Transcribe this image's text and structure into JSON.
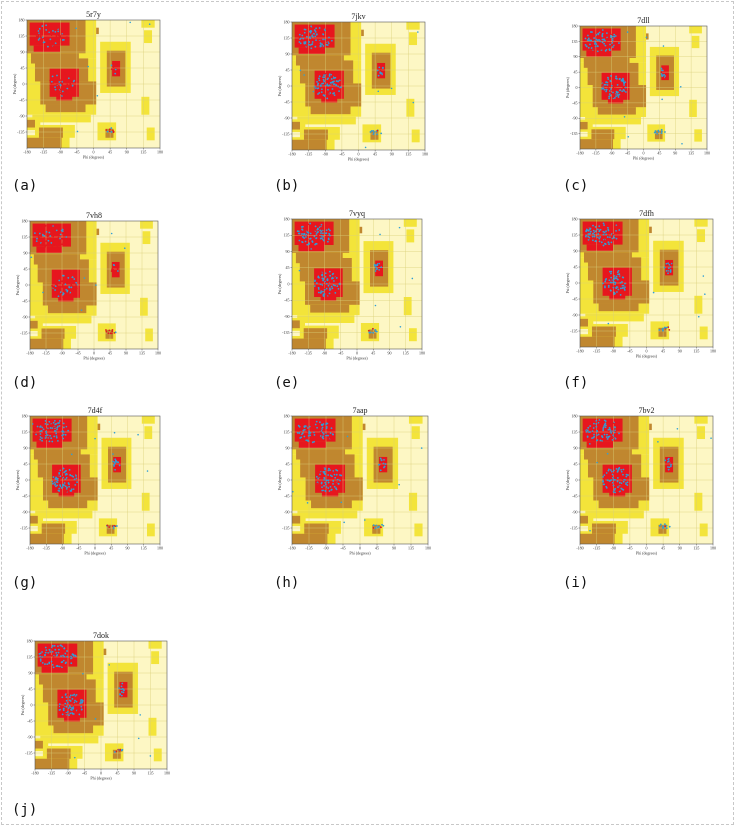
{
  "figure": {
    "colors": {
      "outer": "#fdf7c4",
      "allowed": "#f3e43a",
      "favored": "#c0872f",
      "core": "#e7161e",
      "residue_red": "#e21a1e",
      "residue_blue": "#2f9fd6",
      "grid": "#d9cf7a"
    }
  },
  "chart_data": [
    {
      "type": "scatter",
      "title": "5r7y",
      "caption": "(a)",
      "xlabel": "Phi (degrees)",
      "ylabel": "Psi (degrees)",
      "xlim": [
        -180,
        180
      ],
      "ylim": [
        -180,
        180
      ],
      "xticks": [
        "-180",
        "-135",
        "-90",
        "-45",
        "0",
        "45",
        "90",
        "135",
        "180"
      ],
      "yticks": [
        "180",
        "135",
        "90",
        "45",
        "0",
        "-45",
        "-90",
        "-135"
      ],
      "dominant_marker": "red"
    },
    {
      "type": "scatter",
      "title": "7jkv",
      "caption": "(b)",
      "xlabel": "Phi (degrees)",
      "ylabel": "Psi (degrees)",
      "xlim": [
        -180,
        180
      ],
      "ylim": [
        -180,
        180
      ],
      "xticks": [
        "-180",
        "-135",
        "-90",
        "-45",
        "0",
        "45",
        "90",
        "135",
        "180"
      ],
      "yticks": [
        "180",
        "135",
        "90",
        "45",
        "0",
        "-45",
        "-90",
        "-135"
      ],
      "dominant_marker": "blue"
    },
    {
      "type": "scatter",
      "title": "7dll",
      "caption": "(c)",
      "xlabel": "Phi (degrees)",
      "ylabel": "Psi (degrees)",
      "xlim": [
        -180,
        180
      ],
      "ylim": [
        -180,
        180
      ],
      "xticks": [
        "-180",
        "-135",
        "-90",
        "-45",
        "0",
        "45",
        "90",
        "135",
        "180"
      ],
      "yticks": [
        "180",
        "135",
        "90",
        "45",
        "0",
        "-45",
        "-90",
        "-135"
      ],
      "dominant_marker": "blue"
    },
    {
      "type": "scatter",
      "title": "7vh8",
      "caption": "(d)",
      "xlabel": "Phi (degrees)",
      "ylabel": "Psi (degrees)",
      "xlim": [
        -180,
        180
      ],
      "ylim": [
        -180,
        180
      ],
      "xticks": [
        "-180",
        "-135",
        "-90",
        "-45",
        "0",
        "45",
        "90",
        "135",
        "180"
      ],
      "yticks": [
        "180",
        "135",
        "90",
        "45",
        "0",
        "-45",
        "-90",
        "-135"
      ],
      "dominant_marker": "red"
    },
    {
      "type": "scatter",
      "title": "7vyq",
      "caption": "(e)",
      "xlabel": "Phi (degrees)",
      "ylabel": "Psi (degrees)",
      "xlim": [
        -180,
        180
      ],
      "ylim": [
        -180,
        180
      ],
      "xticks": [
        "-180",
        "-135",
        "-90",
        "-45",
        "0",
        "45",
        "90",
        "135",
        "180"
      ],
      "yticks": [
        "180",
        "135",
        "90",
        "45",
        "0",
        "-45",
        "-90",
        "-135"
      ],
      "dominant_marker": "blue"
    },
    {
      "type": "scatter",
      "title": "7dfh",
      "caption": "(f)",
      "xlabel": "Phi (degrees)",
      "ylabel": "Psi (degrees)",
      "xlim": [
        -180,
        180
      ],
      "ylim": [
        -180,
        180
      ],
      "xticks": [
        "-180",
        "-135",
        "-90",
        "-45",
        "0",
        "45",
        "90",
        "135",
        "180"
      ],
      "yticks": [
        "180",
        "135",
        "90",
        "45",
        "0",
        "-45",
        "-90",
        "-135"
      ],
      "dominant_marker": "blue"
    },
    {
      "type": "scatter",
      "title": "7d4f",
      "caption": "(g)",
      "xlabel": "Phi (degrees)",
      "ylabel": "Psi (degrees)",
      "xlim": [
        -180,
        180
      ],
      "ylim": [
        -180,
        180
      ],
      "xticks": [
        "-180",
        "-135",
        "-90",
        "-45",
        "0",
        "45",
        "90",
        "135",
        "180"
      ],
      "yticks": [
        "180",
        "135",
        "90",
        "45",
        "0",
        "-45",
        "-90",
        "-135"
      ],
      "dominant_marker": "blue"
    },
    {
      "type": "scatter",
      "title": "7aap",
      "caption": "(h)",
      "xlabel": "Phi (degrees)",
      "ylabel": "Psi (degrees)",
      "xlim": [
        -180,
        180
      ],
      "ylim": [
        -180,
        180
      ],
      "xticks": [
        "-180",
        "-135",
        "-90",
        "-45",
        "0",
        "45",
        "90",
        "135",
        "180"
      ],
      "yticks": [
        "180",
        "135",
        "90",
        "45",
        "0",
        "-45",
        "-90",
        "-135"
      ],
      "dominant_marker": "blue"
    },
    {
      "type": "scatter",
      "title": "7bv2",
      "caption": "(i)",
      "xlabel": "Phi (degrees)",
      "ylabel": "Psi (degrees)",
      "xlim": [
        -180,
        180
      ],
      "ylim": [
        -180,
        180
      ],
      "xticks": [
        "-180",
        "-135",
        "-90",
        "-45",
        "0",
        "45",
        "90",
        "135",
        "180"
      ],
      "yticks": [
        "180",
        "135",
        "90",
        "45",
        "0",
        "-45",
        "-90",
        "-135"
      ],
      "dominant_marker": "blue"
    },
    {
      "type": "scatter",
      "title": "7dok",
      "caption": "(j)",
      "xlabel": "Phi (degrees)",
      "ylabel": "Psi (degrees)",
      "xlim": [
        -180,
        180
      ],
      "ylim": [
        -180,
        180
      ],
      "xticks": [
        "-180",
        "-135",
        "-90",
        "-45",
        "0",
        "45",
        "90",
        "135",
        "180"
      ],
      "yticks": [
        "180",
        "135",
        "90",
        "45",
        "0",
        "-45",
        "-90",
        "-135"
      ],
      "dominant_marker": "blue"
    }
  ]
}
